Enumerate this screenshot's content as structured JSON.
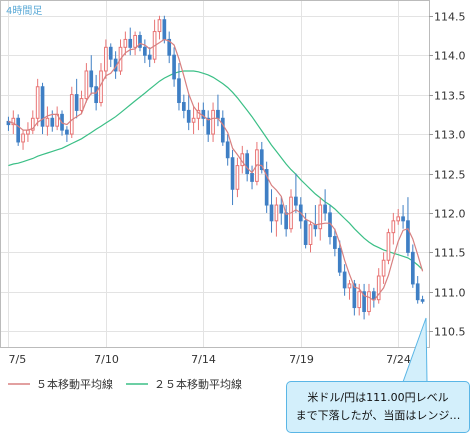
{
  "chart_data": {
    "type": "candlestick",
    "period_label": "4時間足",
    "ylim": [
      110.3,
      114.7
    ],
    "yticks": [
      110.5,
      111.0,
      111.5,
      112.0,
      112.5,
      113.0,
      113.5,
      114.0,
      114.5
    ],
    "ytick_labels": [
      "110.5",
      "111.0",
      "111.5",
      "112.0",
      "112.5",
      "113.0",
      "113.5",
      "114.0",
      "114.5"
    ],
    "xtick_labels": [
      "7/5",
      "7/10",
      "7/14",
      "7/19",
      "7/24"
    ],
    "grid": true,
    "up_color": "#e87474",
    "down_color": "#3f7fc4",
    "series": [
      {
        "name": "５本移動平均線",
        "color": "#d88080"
      },
      {
        "name": "２５本移動平均線",
        "color": "#3bbf86"
      }
    ],
    "candles": [
      [
        113.16,
        113.22,
        113.04,
        113.12
      ],
      [
        113.12,
        113.3,
        113.0,
        113.2
      ],
      [
        113.2,
        113.25,
        112.85,
        112.9
      ],
      [
        112.9,
        113.05,
        112.8,
        113.0
      ],
      [
        113.0,
        113.15,
        112.9,
        113.05
      ],
      [
        113.05,
        113.3,
        113.0,
        113.2
      ],
      [
        113.2,
        113.7,
        113.1,
        113.6
      ],
      [
        113.6,
        113.65,
        113.0,
        113.1
      ],
      [
        113.1,
        113.35,
        112.98,
        113.2
      ],
      [
        113.2,
        113.3,
        113.03,
        113.1
      ],
      [
        113.1,
        113.35,
        113.05,
        113.25
      ],
      [
        113.25,
        113.3,
        112.98,
        113.05
      ],
      [
        113.05,
        113.1,
        112.9,
        113.0
      ],
      [
        113.0,
        113.6,
        112.95,
        113.5
      ],
      [
        113.5,
        113.7,
        113.2,
        113.3
      ],
      [
        113.3,
        113.55,
        113.25,
        113.45
      ],
      [
        113.45,
        113.9,
        113.4,
        113.8
      ],
      [
        113.8,
        114.0,
        113.5,
        113.6
      ],
      [
        113.6,
        113.75,
        113.3,
        113.4
      ],
      [
        113.4,
        113.9,
        113.35,
        113.8
      ],
      [
        113.8,
        114.2,
        113.7,
        114.1
      ],
      [
        114.1,
        114.15,
        113.85,
        113.95
      ],
      [
        113.95,
        114.05,
        113.7,
        113.8
      ],
      [
        113.8,
        114.2,
        113.75,
        114.1
      ],
      [
        114.1,
        114.3,
        114.0,
        114.2
      ],
      [
        114.2,
        114.35,
        114.0,
        114.1
      ],
      [
        114.1,
        114.3,
        114.0,
        114.25
      ],
      [
        114.25,
        114.3,
        114.05,
        114.1
      ],
      [
        114.1,
        114.2,
        113.9,
        114.0
      ],
      [
        114.0,
        114.1,
        113.85,
        113.95
      ],
      [
        113.95,
        114.45,
        113.9,
        114.3
      ],
      [
        114.3,
        114.5,
        114.2,
        114.45
      ],
      [
        114.45,
        114.5,
        114.15,
        114.2
      ],
      [
        114.2,
        114.3,
        113.9,
        114.0
      ],
      [
        114.0,
        114.1,
        113.6,
        113.7
      ],
      [
        113.7,
        113.9,
        113.3,
        113.4
      ],
      [
        113.4,
        113.5,
        113.2,
        113.3
      ],
      [
        113.3,
        113.5,
        113.05,
        113.15
      ],
      [
        113.15,
        113.35,
        113.0,
        113.2
      ],
      [
        113.2,
        113.4,
        113.05,
        113.3
      ],
      [
        113.3,
        113.4,
        113.1,
        113.2
      ],
      [
        113.2,
        113.3,
        112.9,
        113.0
      ],
      [
        113.0,
        113.4,
        112.9,
        113.3
      ],
      [
        113.3,
        113.5,
        113.1,
        113.2
      ],
      [
        113.2,
        113.3,
        112.85,
        112.9
      ],
      [
        112.9,
        113.0,
        112.6,
        112.7
      ],
      [
        112.7,
        112.8,
        112.1,
        112.3
      ],
      [
        112.3,
        112.7,
        112.2,
        112.6
      ],
      [
        112.6,
        112.85,
        112.5,
        112.75
      ],
      [
        112.75,
        112.8,
        112.4,
        112.5
      ],
      [
        112.5,
        112.6,
        112.3,
        112.4
      ],
      [
        112.4,
        112.9,
        112.35,
        112.8
      ],
      [
        112.8,
        112.9,
        112.5,
        112.55
      ],
      [
        112.55,
        112.65,
        112.0,
        112.1
      ],
      [
        112.1,
        112.3,
        111.75,
        111.9
      ],
      [
        111.9,
        112.2,
        111.7,
        112.1
      ],
      [
        112.1,
        112.2,
        111.85,
        112.0
      ],
      [
        112.0,
        112.1,
        111.7,
        111.8
      ],
      [
        111.8,
        112.3,
        111.75,
        112.2
      ],
      [
        112.2,
        112.5,
        112.0,
        112.1
      ],
      [
        112.1,
        112.2,
        111.8,
        111.9
      ],
      [
        111.9,
        112.0,
        111.55,
        111.6
      ],
      [
        111.6,
        111.9,
        111.5,
        111.85
      ],
      [
        111.85,
        112.1,
        111.7,
        111.8
      ],
      [
        111.8,
        112.2,
        111.65,
        112.1
      ],
      [
        112.1,
        112.3,
        111.9,
        112.0
      ],
      [
        112.0,
        112.1,
        111.6,
        111.7
      ],
      [
        111.7,
        111.8,
        111.45,
        111.55
      ],
      [
        111.55,
        111.65,
        111.2,
        111.25
      ],
      [
        111.25,
        111.35,
        110.95,
        111.05
      ],
      [
        111.05,
        111.15,
        110.9,
        111.1
      ],
      [
        111.1,
        111.15,
        110.7,
        110.8
      ],
      [
        110.8,
        111.1,
        110.7,
        111.0
      ],
      [
        111.0,
        111.1,
        110.65,
        110.75
      ],
      [
        110.75,
        111.1,
        110.7,
        111.0
      ],
      [
        111.0,
        111.05,
        110.8,
        110.9
      ],
      [
        110.9,
        111.3,
        110.85,
        111.2
      ],
      [
        111.2,
        111.5,
        111.1,
        111.4
      ],
      [
        111.4,
        111.8,
        111.35,
        111.75
      ],
      [
        111.75,
        112.0,
        111.6,
        111.9
      ],
      [
        111.9,
        112.05,
        111.85,
        111.95
      ],
      [
        111.95,
        112.1,
        111.8,
        111.9
      ],
      [
        111.9,
        112.2,
        111.45,
        111.5
      ],
      [
        111.5,
        111.6,
        111.05,
        111.1
      ],
      [
        111.1,
        111.2,
        110.85,
        110.9
      ],
      [
        110.9,
        110.95,
        110.85,
        110.88
      ]
    ],
    "ma5_values": [
      113.16,
      113.14,
      113.1,
      113.05,
      113.05,
      113.07,
      113.15,
      113.19,
      113.23,
      113.25,
      113.25,
      113.14,
      113.12,
      113.18,
      113.22,
      113.26,
      113.42,
      113.52,
      113.52,
      113.63,
      113.74,
      113.77,
      113.85,
      113.95,
      114.03,
      114.07,
      114.08,
      114.15,
      114.13,
      114.08,
      114.12,
      114.16,
      114.2,
      114.18,
      114.13,
      113.95,
      113.74,
      113.51,
      113.35,
      113.27,
      113.23,
      113.18,
      113.2,
      113.2,
      113.12,
      113.02,
      112.82,
      112.74,
      112.65,
      112.57,
      112.51,
      112.61,
      112.6,
      112.47,
      112.35,
      112.29,
      112.21,
      111.98,
      112.0,
      112.04,
      112.0,
      111.92,
      111.89,
      111.85,
      111.86,
      111.87,
      111.87,
      111.79,
      111.62,
      111.4,
      111.22,
      111.06,
      111.04,
      110.95,
      110.93,
      110.89,
      110.97,
      111.05,
      111.21,
      111.43,
      111.64,
      111.78,
      111.8,
      111.67,
      111.47,
      111.26
    ],
    "ma25_values": [
      112.6,
      112.62,
      112.63,
      112.65,
      112.67,
      112.69,
      112.72,
      112.74,
      112.76,
      112.78,
      112.8,
      112.82,
      112.85,
      112.88,
      112.91,
      112.94,
      112.98,
      113.02,
      113.06,
      113.1,
      113.14,
      113.18,
      113.22,
      113.27,
      113.32,
      113.37,
      113.42,
      113.47,
      113.52,
      113.57,
      113.62,
      113.67,
      113.71,
      113.74,
      113.77,
      113.79,
      113.8,
      113.8,
      113.8,
      113.79,
      113.77,
      113.75,
      113.72,
      113.68,
      113.64,
      113.59,
      113.53,
      113.46,
      113.38,
      113.3,
      113.22,
      113.13,
      113.04,
      112.95,
      112.86,
      112.78,
      112.7,
      112.62,
      112.55,
      112.49,
      112.42,
      112.36,
      112.3,
      112.24,
      112.19,
      112.14,
      112.1,
      112.05,
      111.99,
      111.93,
      111.87,
      111.8,
      111.74,
      111.68,
      111.63,
      111.59,
      111.56,
      111.53,
      111.51,
      111.49,
      111.47,
      111.45,
      111.43,
      111.39,
      111.34,
      111.28
    ]
  },
  "callout": {
    "line1": "米ドル/円は111.00円レベル",
    "line2": "まで下落したが、当面はレンジ…",
    "fill_color": "#d3effb",
    "border_color": "#5ab6e6"
  }
}
